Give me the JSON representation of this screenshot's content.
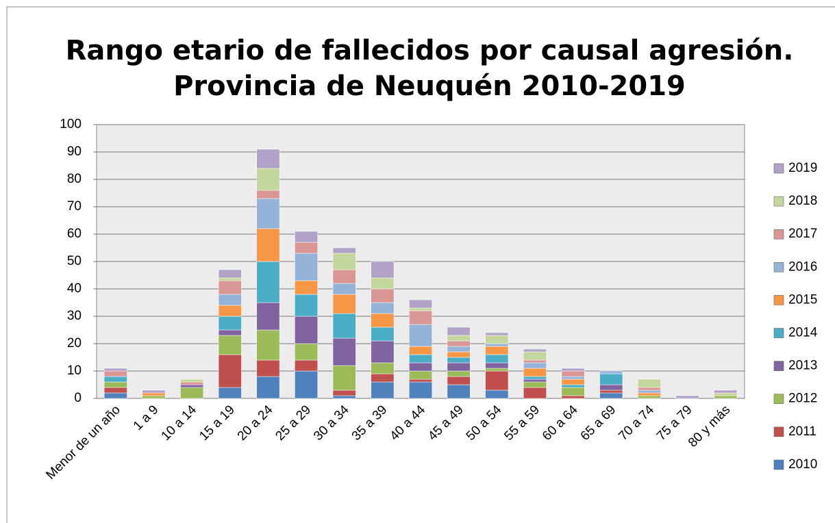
{
  "chart_data": {
    "type": "stacked_bar",
    "title": [
      "Rango etario de fallecidos por causal agresión.",
      "Provincia de Neuquén 2010-2019"
    ],
    "categories": [
      "Menor de un año",
      "1 a 9",
      "10 a 14",
      "15 a 19",
      "20 a 24",
      "25 a 29",
      "30 a 34",
      "35 a 39",
      "40 a 44",
      "45 a 49",
      "50 a 54",
      "55 a 59",
      "60 a 64",
      "65 a 69",
      "70 a 74",
      "75 a 79",
      "80 y más"
    ],
    "series": [
      {
        "name": "2010",
        "color": "#4f81bd",
        "values": [
          2,
          0,
          0,
          4,
          8,
          10,
          1,
          6,
          6,
          5,
          3,
          0,
          0,
          2,
          0,
          0,
          0
        ]
      },
      {
        "name": "2011",
        "color": "#c0504d",
        "values": [
          2,
          0,
          0,
          12,
          6,
          4,
          2,
          3,
          1,
          3,
          7,
          4,
          1,
          1,
          0,
          0,
          0
        ]
      },
      {
        "name": "2012",
        "color": "#9bbb59",
        "values": [
          2,
          1,
          4,
          7,
          11,
          6,
          9,
          4,
          3,
          2,
          1,
          2,
          3,
          0,
          1,
          0,
          1
        ]
      },
      {
        "name": "2013",
        "color": "#8064a2",
        "values": [
          0,
          0,
          1,
          2,
          10,
          10,
          10,
          8,
          3,
          3,
          2,
          1,
          0,
          2,
          0,
          0,
          0
        ]
      },
      {
        "name": "2014",
        "color": "#4bacc6",
        "values": [
          2,
          0,
          0,
          5,
          15,
          8,
          9,
          5,
          3,
          2,
          3,
          1,
          1,
          4,
          0,
          0,
          0
        ]
      },
      {
        "name": "2015",
        "color": "#f79646",
        "values": [
          0,
          1,
          0,
          4,
          12,
          5,
          7,
          5,
          3,
          2,
          3,
          3,
          2,
          0,
          1,
          0,
          0
        ]
      },
      {
        "name": "2016",
        "color": "#95b3d7",
        "values": [
          0,
          0,
          0,
          4,
          11,
          10,
          4,
          4,
          8,
          2,
          1,
          2,
          1,
          1,
          1,
          0,
          0
        ]
      },
      {
        "name": "2017",
        "color": "#d99694",
        "values": [
          2,
          0,
          1,
          5,
          3,
          4,
          5,
          5,
          5,
          2,
          0,
          1,
          2,
          0,
          1,
          0,
          0
        ]
      },
      {
        "name": "2018",
        "color": "#c3d69b",
        "values": [
          0,
          0,
          1,
          1,
          8,
          0,
          6,
          4,
          1,
          2,
          3,
          3,
          0,
          0,
          3,
          0,
          1
        ]
      },
      {
        "name": "2019",
        "color": "#b3a2c7",
        "values": [
          1,
          1,
          0,
          3,
          7,
          4,
          2,
          6,
          3,
          3,
          1,
          1,
          1,
          0,
          0,
          1,
          1
        ]
      }
    ],
    "ylim": [
      0,
      100
    ],
    "yticks": [
      0,
      10,
      20,
      30,
      40,
      50,
      60,
      70,
      80,
      90,
      100
    ],
    "grid": true,
    "legend": "right"
  }
}
